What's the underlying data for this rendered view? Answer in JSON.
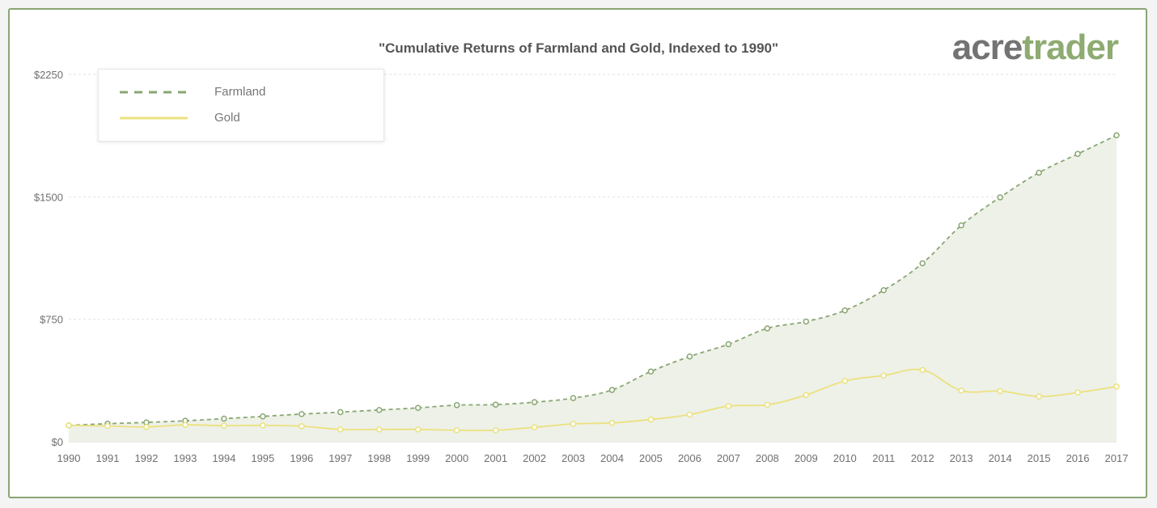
{
  "chart_data": {
    "type": "line",
    "title": "\"Cumulative Returns of Farmland and Gold, Indexed to 1990\"",
    "xlabel": "",
    "ylabel": "",
    "x": [
      "1990",
      "1991",
      "1992",
      "1993",
      "1994",
      "1995",
      "1996",
      "1997",
      "1998",
      "1999",
      "2000",
      "2001",
      "2002",
      "2003",
      "2004",
      "2005",
      "2006",
      "2007",
      "2008",
      "2009",
      "2010",
      "2011",
      "2012",
      "2013",
      "2014",
      "2015",
      "2016",
      "2017"
    ],
    "ylim": [
      0,
      2250
    ],
    "yticks": [
      0,
      750,
      1500,
      2250
    ],
    "ytick_labels": [
      "$0",
      "$750",
      "$1500",
      "$2250"
    ],
    "grid": true,
    "legend_position": "top-left",
    "series": [
      {
        "name": "Farmland",
        "style": "dashed",
        "fill": true,
        "color": "#88a672",
        "values": [
          100,
          110,
          118,
          128,
          141,
          155,
          169,
          181,
          194,
          207,
          224,
          227,
          242,
          267,
          317,
          430,
          522,
          597,
          694,
          736,
          804,
          928,
          1093,
          1325,
          1497,
          1648,
          1763,
          1877
        ]
      },
      {
        "name": "Gold",
        "style": "solid",
        "fill": false,
        "color": "#ece17f",
        "values": [
          100,
          96,
          90,
          103,
          98,
          100,
          95,
          75,
          75,
          75,
          70,
          70,
          88,
          109,
          115,
          136,
          166,
          218,
          226,
          286,
          372,
          405,
          439,
          313,
          310,
          277,
          301,
          338
        ]
      }
    ]
  },
  "logo": {
    "part1": "acre",
    "part2": "trader"
  }
}
